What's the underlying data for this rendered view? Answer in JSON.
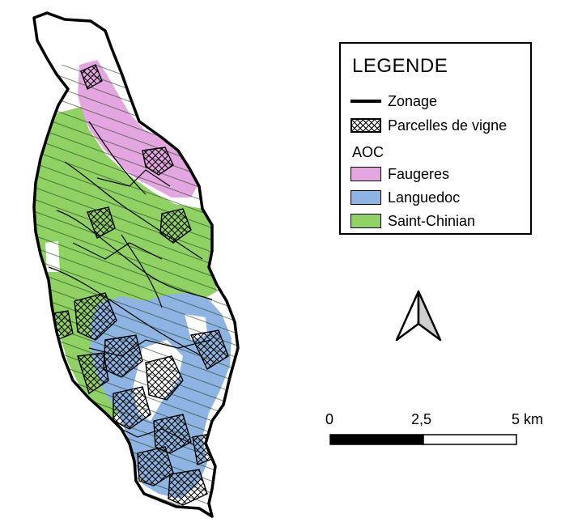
{
  "legend": {
    "title": "LEGENDE",
    "zonage": "Zonage",
    "parcelles": "Parcelles de vigne",
    "aoc_header": "AOC",
    "aoc": [
      {
        "label": "Faugeres",
        "color": "#e4a6e0"
      },
      {
        "label": "Languedoc",
        "color": "#8db4e2"
      },
      {
        "label": "Saint-Chinian",
        "color": "#8fd163"
      }
    ]
  },
  "scale": {
    "labels": [
      "0",
      "2,5",
      "5 km"
    ]
  },
  "north_arrow": "north-arrow-icon"
}
